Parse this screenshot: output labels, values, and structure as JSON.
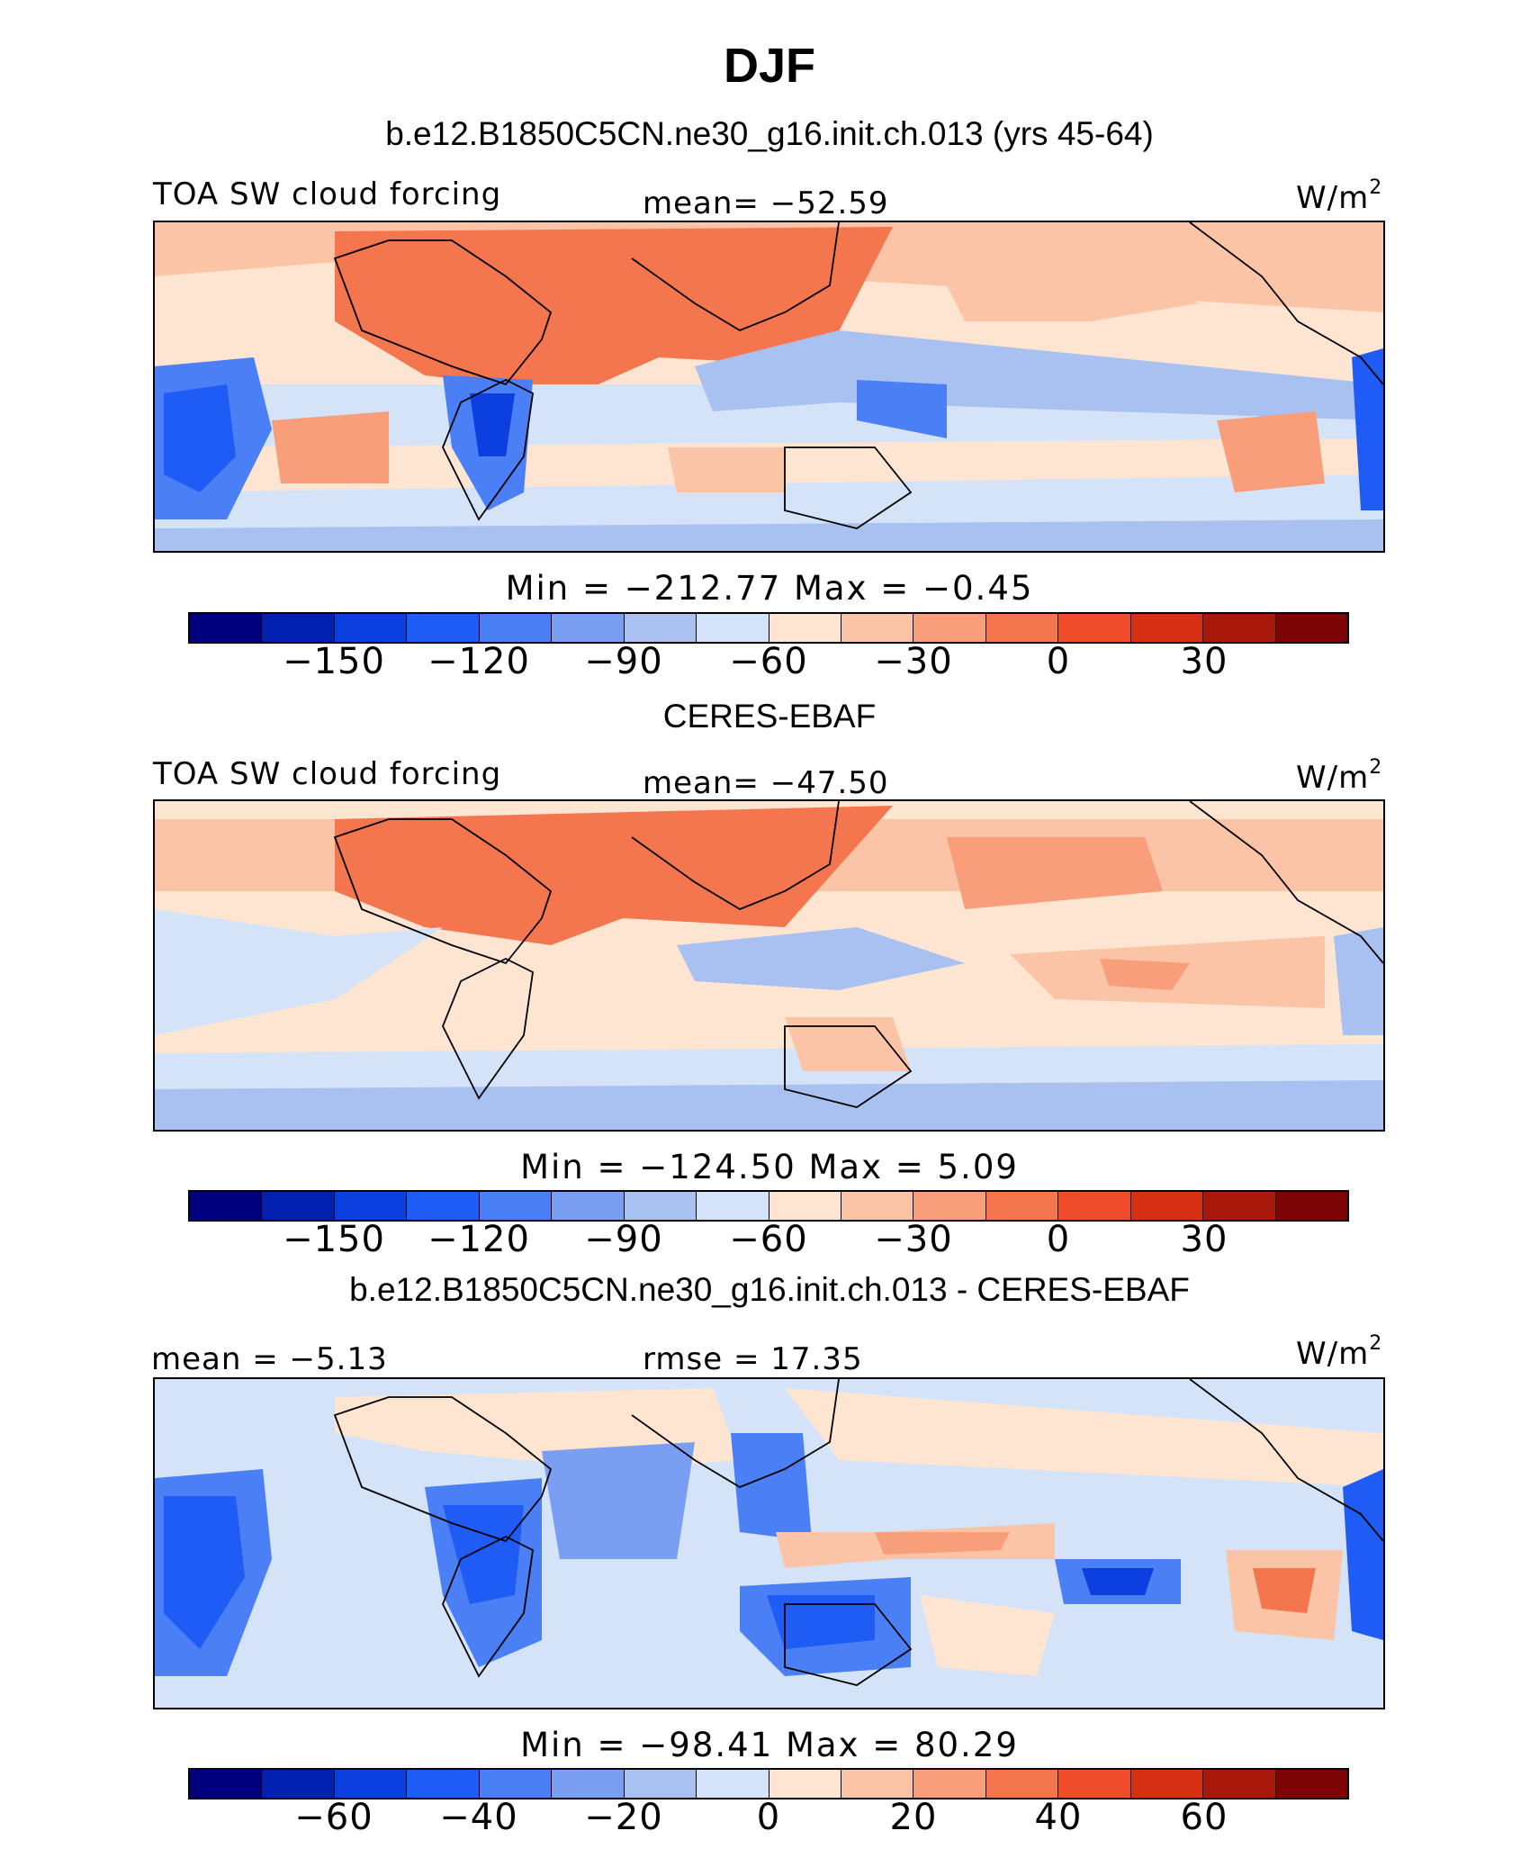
{
  "title": "DJF",
  "units_base": "W/m",
  "units_exp": "2",
  "colors": [
    "#00007f",
    "#0020b0",
    "#0b3fdf",
    "#1f5cf5",
    "#4a7ff5",
    "#7a9ff2",
    "#a9c1f0",
    "#d4e3f7",
    "#fde5d2",
    "#fbc4a6",
    "#f89e7a",
    "#f4764e",
    "#ee4c2a",
    "#d73014",
    "#a8180b",
    "#7d0404"
  ],
  "panels": [
    {
      "title": "b.e12.B1850C5CN.ne30_g16.init.ch.013 (yrs 45-64)",
      "left_label": "TOA SW cloud forcing",
      "center_label": "mean= −52.59",
      "minmax": "Min  =  −212.77  Max  =    −0.45",
      "ticks": [
        "−150",
        "−120",
        "−90",
        "−60",
        "−30",
        "0",
        "30"
      ]
    },
    {
      "title": "CERES-EBAF",
      "left_label": "TOA SW cloud forcing",
      "center_label": "mean= −47.50",
      "minmax": "Min  =  −124.50  Max  =     5.09",
      "ticks": [
        "−150",
        "−120",
        "−90",
        "−60",
        "−30",
        "0",
        "30"
      ]
    },
    {
      "title": "b.e12.B1850C5CN.ne30_g16.init.ch.013 - CERES-EBAF",
      "left_label": "mean =  −5.13",
      "center_label": "rmse =  17.35",
      "minmax": "Min  =  −98.41  Max  =   80.29",
      "ticks": [
        "−60",
        "−40",
        "−20",
        "0",
        "20",
        "40",
        "60"
      ]
    }
  ]
}
